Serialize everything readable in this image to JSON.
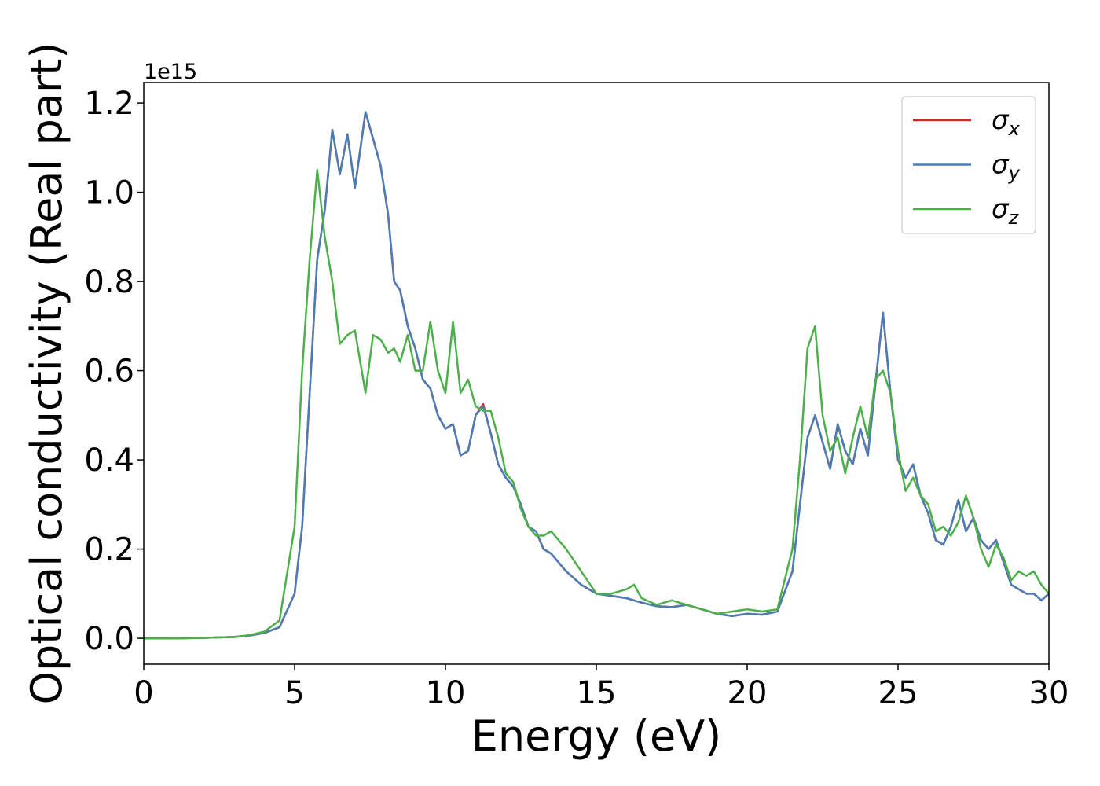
{
  "chart_data": {
    "type": "line",
    "xlabel": "Energy (eV)",
    "ylabel": "Optical conductivity (Real part)",
    "y_offset_label": "1e15",
    "legend": "upper right",
    "grid": false,
    "xlim": [
      0,
      30
    ],
    "xticks": [
      0,
      5,
      10,
      15,
      20,
      25,
      30
    ],
    "ylim": [
      -0.058,
      1.246
    ],
    "yticks": [
      {
        "value": 0,
        "label": "0.0"
      },
      0.2,
      0.4,
      0.6,
      0.8,
      {
        "value": 1,
        "label": "1.0"
      },
      1.2
    ],
    "x": [
      0,
      1,
      2,
      3,
      3.5,
      4,
      4.5,
      5,
      5.25,
      5.5,
      5.75,
      6,
      6.25,
      6.5,
      6.75,
      7,
      7.35,
      7.6,
      7.85,
      8.1,
      8.3,
      8.5,
      8.75,
      9,
      9.25,
      9.5,
      9.75,
      10,
      10.25,
      10.5,
      10.75,
      11,
      11.25,
      11.5,
      11.75,
      12,
      12.25,
      12.5,
      12.75,
      13,
      13.25,
      13.5,
      13.75,
      14,
      14.5,
      15,
      15.5,
      16,
      16.25,
      16.5,
      17,
      17.5,
      18,
      18.5,
      19,
      19.5,
      20,
      20.5,
      21,
      21.5,
      21.75,
      22,
      22.25,
      22.5,
      22.75,
      23,
      23.25,
      23.5,
      23.75,
      24,
      24.25,
      24.5,
      24.75,
      25,
      25.25,
      25.5,
      25.75,
      26,
      26.25,
      26.5,
      26.75,
      27,
      27.25,
      27.5,
      27.75,
      28,
      28.25,
      28.5,
      28.75,
      29,
      29.25,
      29.5,
      29.75,
      30
    ],
    "series": [
      {
        "name": "σx",
        "color": "#d62728",
        "values": [
          0,
          0,
          0.001,
          0.003,
          0.006,
          0.012,
          0.025,
          0.1,
          0.25,
          0.55,
          0.85,
          0.96,
          1.14,
          1.04,
          1.13,
          1.01,
          1.18,
          1.12,
          1.06,
          0.95,
          0.8,
          0.78,
          0.7,
          0.65,
          0.58,
          0.56,
          0.5,
          0.47,
          0.48,
          0.41,
          0.42,
          0.5,
          0.525,
          0.46,
          0.39,
          0.36,
          0.34,
          0.3,
          0.25,
          0.24,
          0.2,
          0.19,
          0.17,
          0.15,
          0.12,
          0.1,
          0.095,
          0.09,
          0.085,
          0.08,
          0.072,
          0.07,
          0.075,
          0.065,
          0.055,
          0.05,
          0.055,
          0.053,
          0.06,
          0.15,
          0.3,
          0.45,
          0.5,
          0.44,
          0.38,
          0.48,
          0.42,
          0.39,
          0.47,
          0.41,
          0.57,
          0.73,
          0.55,
          0.4,
          0.36,
          0.39,
          0.32,
          0.28,
          0.22,
          0.21,
          0.25,
          0.31,
          0.24,
          0.27,
          0.22,
          0.2,
          0.22,
          0.17,
          0.12,
          0.11,
          0.1,
          0.1,
          0.085,
          0.1
        ]
      },
      {
        "name": "σy",
        "color": "#4a7db5",
        "values": [
          0,
          0,
          0.001,
          0.003,
          0.006,
          0.012,
          0.025,
          0.1,
          0.25,
          0.55,
          0.85,
          0.96,
          1.14,
          1.04,
          1.13,
          1.01,
          1.18,
          1.12,
          1.06,
          0.95,
          0.8,
          0.78,
          0.7,
          0.65,
          0.58,
          0.56,
          0.5,
          0.47,
          0.48,
          0.41,
          0.42,
          0.5,
          0.52,
          0.46,
          0.39,
          0.36,
          0.34,
          0.3,
          0.25,
          0.24,
          0.2,
          0.19,
          0.17,
          0.15,
          0.12,
          0.1,
          0.095,
          0.09,
          0.085,
          0.08,
          0.072,
          0.07,
          0.075,
          0.065,
          0.055,
          0.05,
          0.055,
          0.053,
          0.06,
          0.15,
          0.3,
          0.45,
          0.5,
          0.44,
          0.38,
          0.48,
          0.42,
          0.39,
          0.47,
          0.41,
          0.57,
          0.73,
          0.55,
          0.4,
          0.36,
          0.39,
          0.32,
          0.28,
          0.22,
          0.21,
          0.25,
          0.31,
          0.24,
          0.27,
          0.22,
          0.2,
          0.22,
          0.17,
          0.12,
          0.11,
          0.1,
          0.1,
          0.085,
          0.1
        ]
      },
      {
        "name": "σz",
        "color": "#4daf4a",
        "values": [
          0,
          0,
          0.001,
          0.003,
          0.007,
          0.015,
          0.04,
          0.25,
          0.6,
          0.85,
          1.05,
          0.9,
          0.8,
          0.66,
          0.68,
          0.69,
          0.55,
          0.68,
          0.67,
          0.64,
          0.65,
          0.62,
          0.68,
          0.6,
          0.6,
          0.71,
          0.6,
          0.55,
          0.71,
          0.55,
          0.58,
          0.52,
          0.51,
          0.51,
          0.45,
          0.37,
          0.35,
          0.29,
          0.25,
          0.23,
          0.23,
          0.24,
          0.22,
          0.2,
          0.15,
          0.1,
          0.1,
          0.11,
          0.12,
          0.09,
          0.075,
          0.085,
          0.075,
          0.065,
          0.055,
          0.06,
          0.065,
          0.06,
          0.065,
          0.2,
          0.4,
          0.65,
          0.7,
          0.5,
          0.42,
          0.45,
          0.37,
          0.45,
          0.52,
          0.45,
          0.58,
          0.6,
          0.55,
          0.42,
          0.33,
          0.36,
          0.32,
          0.3,
          0.24,
          0.25,
          0.23,
          0.26,
          0.32,
          0.27,
          0.2,
          0.16,
          0.21,
          0.18,
          0.13,
          0.15,
          0.14,
          0.15,
          0.12,
          0.1
        ]
      }
    ]
  }
}
